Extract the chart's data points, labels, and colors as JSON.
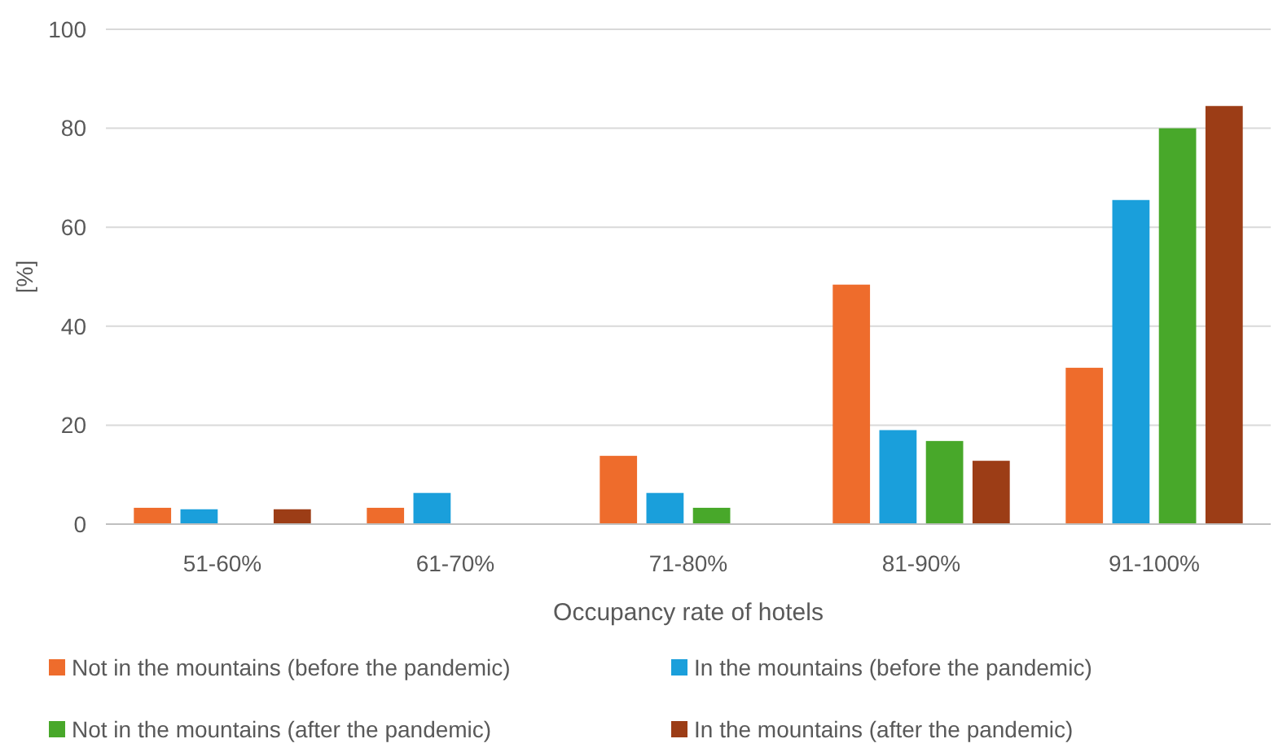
{
  "chart_data": {
    "type": "bar",
    "xlabel": "Occupancy rate of hotels",
    "ylabel": "[%]",
    "categories": [
      "51-60%",
      "61-70%",
      "71-80%",
      "81-90%",
      "91-100%"
    ],
    "series": [
      {
        "name": "Not in the mountains (before the pandemic)",
        "color": "#ee6c2c",
        "values": [
          3.3,
          3.3,
          13.8,
          48.4,
          31.6
        ]
      },
      {
        "name": "In the mountains (before the pandemic)",
        "color": "#1a9fdb",
        "values": [
          3,
          6.3,
          6.3,
          19,
          65.5
        ]
      },
      {
        "name": "Not in the mountains (after the pandemic)",
        "color": "#48a82a",
        "values": [
          null,
          null,
          3.3,
          16.8,
          80
        ]
      },
      {
        "name": "In the mountains (after the pandemic)",
        "color": "#9c3d16",
        "values": [
          3,
          null,
          null,
          12.8,
          84.5
        ]
      }
    ],
    "ylim": [
      0,
      100
    ],
    "yticks": [
      0,
      20,
      40,
      60,
      80,
      100
    ],
    "grid": "y",
    "legend": "bottom"
  }
}
